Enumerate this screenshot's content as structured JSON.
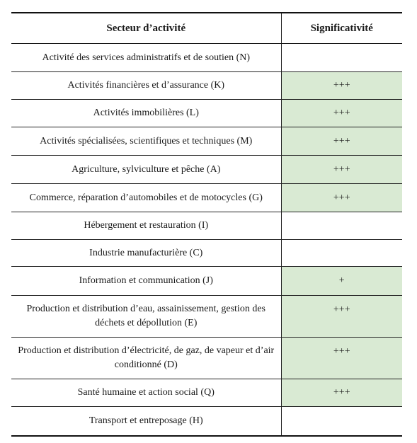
{
  "table": {
    "headers": {
      "sector": "Secteur d’activité",
      "significance": "Significativité"
    },
    "highlight_color": "#d9ead3",
    "rows": [
      {
        "sector": "Activité des services administratifs et de soutien (N)",
        "significance": "",
        "highlight": false
      },
      {
        "sector": "Activités financières et d’assurance (K)",
        "significance": "+++",
        "highlight": true
      },
      {
        "sector": "Activités immobilières (L)",
        "significance": "+++",
        "highlight": true
      },
      {
        "sector": "Activités spécialisées, scientifiques et techniques (M)",
        "significance": "+++",
        "highlight": true
      },
      {
        "sector": "Agriculture, sylviculture et pêche (A)",
        "significance": "+++",
        "highlight": true
      },
      {
        "sector": "Commerce, réparation d’automobiles et de motocycles (G)",
        "significance": "+++",
        "highlight": true
      },
      {
        "sector": "Hébergement et restauration (I)",
        "significance": "",
        "highlight": false
      },
      {
        "sector": "Industrie manufacturière (C)",
        "significance": "",
        "highlight": false
      },
      {
        "sector": "Information et communication (J)",
        "significance": "+",
        "highlight": true
      },
      {
        "sector": "Production et distribution d’eau, assainissement, gestion des déchets et dépollution (E)",
        "significance": "+++",
        "highlight": true
      },
      {
        "sector": "Production et distribution d’électricité, de gaz, de vapeur et d’air conditionné (D)",
        "significance": "+++",
        "highlight": true
      },
      {
        "sector": "Santé humaine et action social (Q)",
        "significance": "+++",
        "highlight": true
      },
      {
        "sector": "Transport et entreposage (H)",
        "significance": "",
        "highlight": false
      }
    ]
  }
}
